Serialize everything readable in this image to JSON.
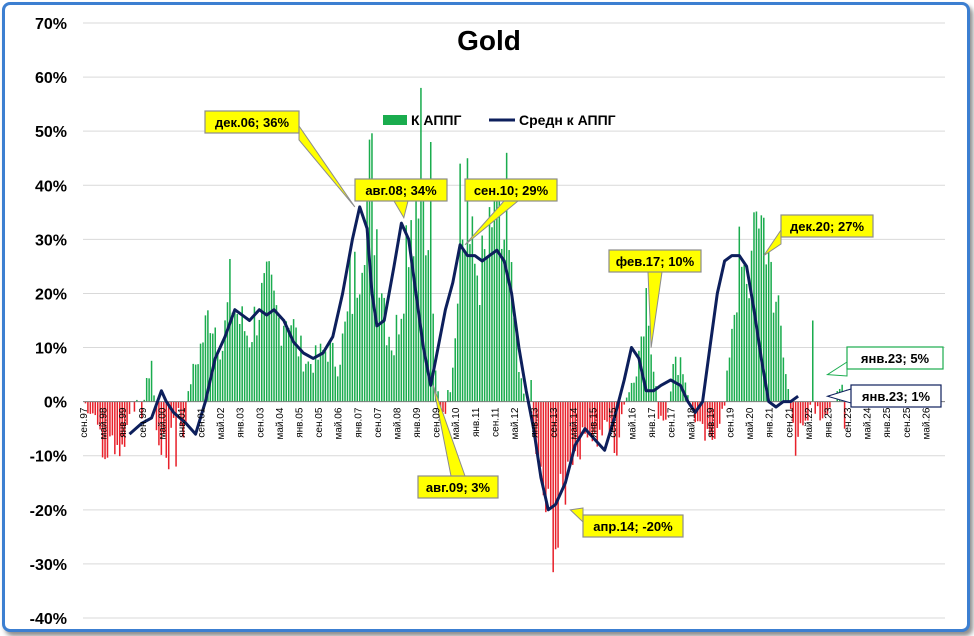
{
  "chart_data": {
    "type": "bar+line",
    "title": "Gold",
    "ylim": [
      -0.4,
      0.7
    ],
    "yticks": [
      "-40%",
      "-30%",
      "-20%",
      "-10%",
      "0%",
      "10%",
      "20%",
      "30%",
      "40%",
      "50%",
      "60%",
      "70%"
    ],
    "ytick_values": [
      -0.4,
      -0.3,
      -0.2,
      -0.1,
      0,
      0.1,
      0.2,
      0.3,
      0.4,
      0.5,
      0.6,
      0.7
    ],
    "xlim_months": [
      0,
      352
    ],
    "x_start": "сен.97",
    "xtick_labels": [
      "сен.97",
      "май.98",
      "янв.99",
      "сен.99",
      "май.00",
      "янв.01",
      "сен.01",
      "май.02",
      "янв.03",
      "сен.03",
      "май.04",
      "янв.05",
      "сен.05",
      "май.06",
      "янв.07",
      "сен.07",
      "май.08",
      "янв.09",
      "сен.09",
      "май.10",
      "янв.11",
      "сен.11",
      "май.12",
      "янв.13",
      "сен.13",
      "май.14",
      "янв.15",
      "сен.15",
      "май.16",
      "янв.17",
      "сен.17",
      "май.18",
      "янв.19",
      "сен.19",
      "май.20",
      "янв.21",
      "сен.21",
      "май.22",
      "янв.23",
      "сен.23",
      "май.24",
      "янв.25",
      "сен.25",
      "май.26"
    ],
    "legend": [
      {
        "label": "К АППГ",
        "color": "#1aac4e",
        "kind": "bar"
      },
      {
        "label": "Средн к АППГ",
        "color": "#0d1f5c",
        "kind": "line"
      }
    ],
    "legend_position": "top-center",
    "series": [
      {
        "name": "К АППГ",
        "type": "bar",
        "positive_color": "#1aac4e",
        "negative_color": "#e8212b",
        "anchors": [
          [
            0,
            0
          ],
          [
            6,
            -0.03
          ],
          [
            8,
            -0.11
          ],
          [
            12,
            -0.07
          ],
          [
            16,
            -0.09
          ],
          [
            20,
            0.0
          ],
          [
            24,
            -0.02
          ],
          [
            28,
            0.08
          ],
          [
            30,
            -0.06
          ],
          [
            34,
            -0.1
          ],
          [
            38,
            0.0
          ],
          [
            41,
            -0.06
          ],
          [
            44,
            0.04
          ],
          [
            48,
            0.1
          ],
          [
            52,
            0.17
          ],
          [
            57,
            0.1
          ],
          [
            60,
            0.2
          ],
          [
            64,
            0.15
          ],
          [
            68,
            0.12
          ],
          [
            72,
            0.18
          ],
          [
            76,
            0.2
          ],
          [
            80,
            0.15
          ],
          [
            84,
            0.17
          ],
          [
            88,
            0.1
          ],
          [
            92,
            0.07
          ],
          [
            96,
            0.08
          ],
          [
            100,
            0.1
          ],
          [
            104,
            0.07
          ],
          [
            108,
            0.15
          ],
          [
            112,
            0.25
          ],
          [
            115,
            0.38
          ],
          [
            118,
            0.4
          ],
          [
            121,
            0.28
          ],
          [
            124,
            0.15
          ],
          [
            127,
            0.1
          ],
          [
            130,
            0.2
          ],
          [
            133,
            0.35
          ],
          [
            136,
            0.38
          ],
          [
            139,
            0.32
          ],
          [
            142,
            0.2
          ],
          [
            144,
            0.05
          ],
          [
            146,
            -0.02
          ],
          [
            148,
            -0.01
          ],
          [
            150,
            0.03
          ],
          [
            152,
            0.15
          ],
          [
            154,
            0.27
          ],
          [
            157,
            0.3
          ],
          [
            160,
            0.25
          ],
          [
            163,
            0.24
          ],
          [
            166,
            0.28
          ],
          [
            169,
            0.3
          ],
          [
            172,
            0.3
          ],
          [
            175,
            0.2
          ],
          [
            178,
            0.05
          ],
          [
            181,
            0.0
          ],
          [
            184,
            -0.06
          ],
          [
            187,
            -0.15
          ],
          [
            190,
            -0.22
          ],
          [
            193,
            -0.25
          ],
          [
            196,
            -0.18
          ],
          [
            199,
            -0.1
          ],
          [
            202,
            -0.09
          ],
          [
            206,
            -0.05
          ],
          [
            210,
            -0.07
          ],
          [
            214,
            -0.04
          ],
          [
            218,
            -0.09
          ],
          [
            222,
            0.02
          ],
          [
            226,
            0.05
          ],
          [
            229,
            0.18
          ],
          [
            232,
            0.09
          ],
          [
            235,
            -0.02
          ],
          [
            238,
            -0.03
          ],
          [
            241,
            0.06
          ],
          [
            244,
            0.08
          ],
          [
            247,
            0.02
          ],
          [
            250,
            -0.03
          ],
          [
            253,
            -0.06
          ],
          [
            256,
            -0.08
          ],
          [
            259,
            -0.04
          ],
          [
            262,
            -0.01
          ],
          [
            265,
            0.15
          ],
          [
            268,
            0.25
          ],
          [
            271,
            0.19
          ],
          [
            274,
            0.3
          ],
          [
            277,
            0.32
          ],
          [
            280,
            0.27
          ],
          [
            283,
            0.2
          ],
          [
            286,
            0.08
          ],
          [
            289,
            -0.01
          ],
          [
            292,
            -0.06
          ],
          [
            295,
            -0.05
          ],
          [
            298,
            0.0
          ],
          [
            301,
            -0.03
          ],
          [
            304,
            -0.01
          ],
          [
            307,
            0.0
          ],
          [
            310,
            0.03
          ],
          [
            313,
            0.02
          ],
          [
            316,
            0.0
          ],
          [
            320,
            0.0
          ],
          [
            352,
            0.0
          ]
        ],
        "peaks": [
          [
            35,
            -0.125
          ],
          [
            38,
            -0.12
          ],
          [
            109,
            0.27
          ],
          [
            138,
            0.58
          ],
          [
            142,
            0.48
          ],
          [
            139,
            0.39
          ],
          [
            154,
            0.44
          ],
          [
            157,
            0.45
          ],
          [
            168,
            0.39
          ],
          [
            173,
            0.46
          ],
          [
            183,
            0.04
          ],
          [
            194,
            -0.27
          ],
          [
            199,
            -0.12
          ],
          [
            230,
            0.21
          ],
          [
            274,
            0.35
          ],
          [
            278,
            0.34
          ],
          [
            276,
            0.32
          ],
          [
            291,
            -0.1
          ],
          [
            298,
            0.15
          ],
          [
            311,
            -0.05
          ]
        ]
      },
      {
        "name": "Средн к АППГ",
        "type": "line",
        "color": "#0d1f5c",
        "points": [
          [
            19,
            -0.06
          ],
          [
            24,
            -0.04
          ],
          [
            28,
            -0.03
          ],
          [
            32,
            0.02
          ],
          [
            34,
            0.0
          ],
          [
            37,
            -0.02
          ],
          [
            42,
            -0.04
          ],
          [
            46,
            -0.06
          ],
          [
            50,
            0.0
          ],
          [
            54,
            0.08
          ],
          [
            58,
            0.12
          ],
          [
            62,
            0.17
          ],
          [
            65,
            0.16
          ],
          [
            68,
            0.15
          ],
          [
            72,
            0.17
          ],
          [
            75,
            0.16
          ],
          [
            78,
            0.17
          ],
          [
            82,
            0.15
          ],
          [
            86,
            0.11
          ],
          [
            90,
            0.09
          ],
          [
            94,
            0.08
          ],
          [
            98,
            0.09
          ],
          [
            102,
            0.12
          ],
          [
            106,
            0.2
          ],
          [
            110,
            0.3
          ],
          [
            113,
            0.36
          ],
          [
            116,
            0.32
          ],
          [
            118,
            0.2
          ],
          [
            120,
            0.14
          ],
          [
            123,
            0.15
          ],
          [
            127,
            0.25
          ],
          [
            130,
            0.33
          ],
          [
            133,
            0.3
          ],
          [
            136,
            0.2
          ],
          [
            139,
            0.1
          ],
          [
            142,
            0.03
          ],
          [
            145,
            0.1
          ],
          [
            148,
            0.17
          ],
          [
            151,
            0.22
          ],
          [
            154,
            0.29
          ],
          [
            157,
            0.27
          ],
          [
            160,
            0.27
          ],
          [
            163,
            0.26
          ],
          [
            166,
            0.27
          ],
          [
            169,
            0.28
          ],
          [
            172,
            0.26
          ],
          [
            175,
            0.2
          ],
          [
            178,
            0.1
          ],
          [
            181,
            0.02
          ],
          [
            184,
            -0.05
          ],
          [
            187,
            -0.14
          ],
          [
            190,
            -0.2
          ],
          [
            193,
            -0.19
          ],
          [
            197,
            -0.15
          ],
          [
            201,
            -0.08
          ],
          [
            205,
            -0.05
          ],
          [
            209,
            -0.07
          ],
          [
            213,
            -0.09
          ],
          [
            217,
            -0.03
          ],
          [
            221,
            0.04
          ],
          [
            224,
            0.1
          ],
          [
            227,
            0.08
          ],
          [
            230,
            0.02
          ],
          [
            233,
            0.02
          ],
          [
            236,
            0.03
          ],
          [
            240,
            0.04
          ],
          [
            244,
            0.03
          ],
          [
            247,
            0.0
          ],
          [
            250,
            -0.02
          ],
          [
            253,
            0.0
          ],
          [
            256,
            0.1
          ],
          [
            259,
            0.2
          ],
          [
            262,
            0.26
          ],
          [
            265,
            0.27
          ],
          [
            268,
            0.27
          ],
          [
            271,
            0.25
          ],
          [
            274,
            0.17
          ],
          [
            277,
            0.08
          ],
          [
            280,
            0.0
          ],
          [
            283,
            -0.01
          ],
          [
            286,
            0.0
          ],
          [
            289,
            0.0
          ],
          [
            292,
            0.01
          ]
        ]
      }
    ],
    "annotations": [
      {
        "text": "дек.06; 36%",
        "style": "yellow",
        "month": 111,
        "value": 0.36
      },
      {
        "text": "авг.08; 34%",
        "style": "yellow",
        "month": 131,
        "value": 0.34
      },
      {
        "text": "сен.10; 29%",
        "style": "yellow",
        "month": 156,
        "value": 0.29
      },
      {
        "text": "авг.09; 3%",
        "style": "yellow",
        "month": 143,
        "value": 0.03
      },
      {
        "text": "апр.14; -20%",
        "style": "yellow",
        "month": 199,
        "value": -0.2
      },
      {
        "text": "фев.17; 10%",
        "style": "yellow",
        "month": 232,
        "value": 0.1
      },
      {
        "text": "дек.20; 27%",
        "style": "yellow",
        "month": 278,
        "value": 0.27
      },
      {
        "text": "янв.23; 5%",
        "style": "green",
        "month": 304,
        "value": 0.05
      },
      {
        "text": "янв.23; 1%",
        "style": "navy",
        "month": 304,
        "value": 0.01
      }
    ]
  }
}
